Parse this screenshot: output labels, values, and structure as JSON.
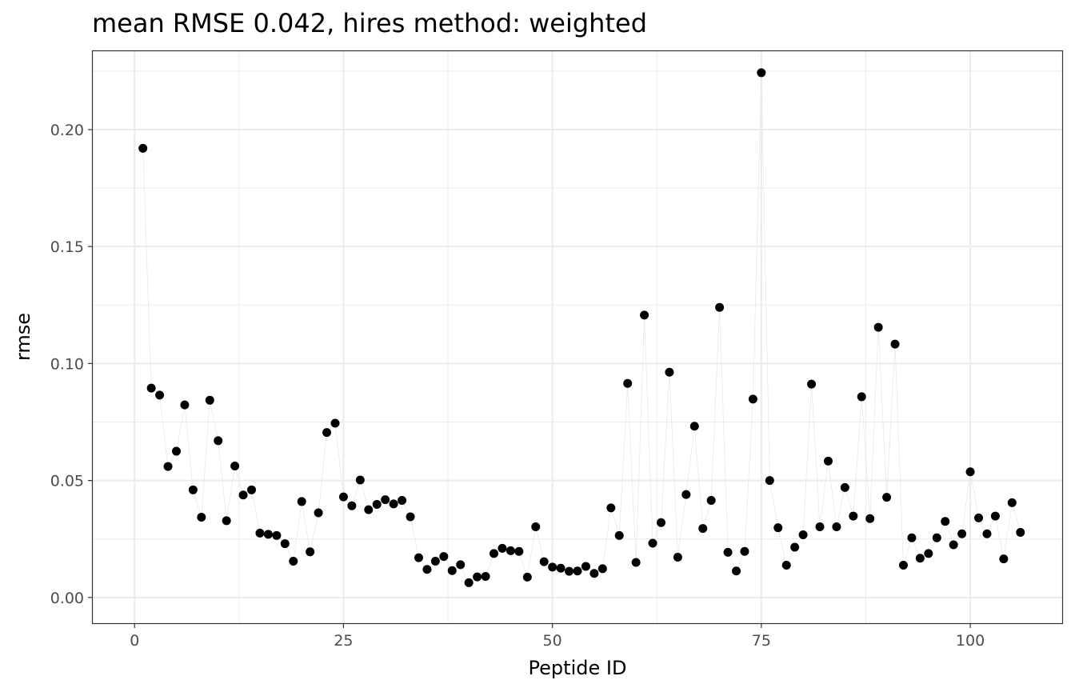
{
  "chart_data": {
    "type": "scatter",
    "title": "mean RMSE 0.042, hires method: weighted",
    "xlabel": "Peptide ID",
    "ylabel": "rmse",
    "xlim": [
      -5,
      111
    ],
    "ylim": [
      -0.011,
      0.2335
    ],
    "x_ticks": [
      0,
      25,
      50,
      75,
      100
    ],
    "x_tick_labels": [
      "0",
      "25",
      "50",
      "75",
      "100"
    ],
    "y_ticks": [
      0.0,
      0.05,
      0.1,
      0.15,
      0.2
    ],
    "y_tick_labels": [
      "0.00",
      "0.05",
      "0.10",
      "0.15",
      "0.20"
    ],
    "grid": true,
    "connecting_line": true,
    "series": [
      {
        "x": [
          1,
          2,
          3,
          4,
          5,
          6,
          7,
          8,
          9,
          10,
          11,
          12,
          13,
          14,
          15,
          16,
          17,
          18,
          19,
          20,
          21,
          22,
          23,
          24,
          25,
          26,
          27,
          28,
          29,
          30,
          31,
          32,
          33,
          34,
          35,
          36,
          37,
          38,
          39,
          40,
          41,
          42,
          43,
          44,
          45,
          46,
          47,
          48,
          49,
          50,
          51,
          52,
          53,
          54,
          55,
          56,
          57,
          58,
          59,
          60,
          61,
          62,
          63,
          64,
          65,
          66,
          67,
          68,
          69,
          70,
          71,
          72,
          73,
          74,
          75,
          76,
          77,
          78,
          79,
          80,
          81,
          82,
          83,
          84,
          85,
          86,
          87,
          88,
          89,
          90,
          91,
          92,
          93,
          94,
          95,
          96,
          97,
          98,
          99,
          100,
          101,
          102,
          103,
          104,
          105,
          106
        ],
        "y": [
          0.192,
          0.0895,
          0.0865,
          0.056,
          0.0625,
          0.0823,
          0.046,
          0.0343,
          0.0843,
          0.067,
          0.0328,
          0.0562,
          0.0438,
          0.046,
          0.0275,
          0.027,
          0.0265,
          0.023,
          0.0155,
          0.041,
          0.0195,
          0.0362,
          0.0705,
          0.0745,
          0.043,
          0.0392,
          0.0502,
          0.0375,
          0.0398,
          0.0418,
          0.04,
          0.0415,
          0.0345,
          0.017,
          0.012,
          0.0155,
          0.0175,
          0.0115,
          0.014,
          0.0063,
          0.0088,
          0.009,
          0.0188,
          0.021,
          0.02,
          0.0197,
          0.0087,
          0.0302,
          0.0153,
          0.013,
          0.0125,
          0.0112,
          0.0113,
          0.0133,
          0.0103,
          0.0123,
          0.0383,
          0.0265,
          0.0915,
          0.015,
          0.1207,
          0.0232,
          0.032,
          0.0963,
          0.0172,
          0.044,
          0.0732,
          0.0295,
          0.0415,
          0.124,
          0.0193,
          0.0113,
          0.0197,
          0.0848,
          0.2243,
          0.05,
          0.0298,
          0.0138,
          0.0215,
          0.0268,
          0.0912,
          0.0302,
          0.0583,
          0.0302,
          0.047,
          0.0348,
          0.0858,
          0.0337,
          0.1155,
          0.0428,
          0.1083,
          0.0138,
          0.0255,
          0.0168,
          0.0188,
          0.0255,
          0.0325,
          0.0225,
          0.0272,
          0.0537,
          0.034,
          0.0272,
          0.0348,
          0.0165,
          0.0405,
          0.0278
        ]
      }
    ]
  }
}
